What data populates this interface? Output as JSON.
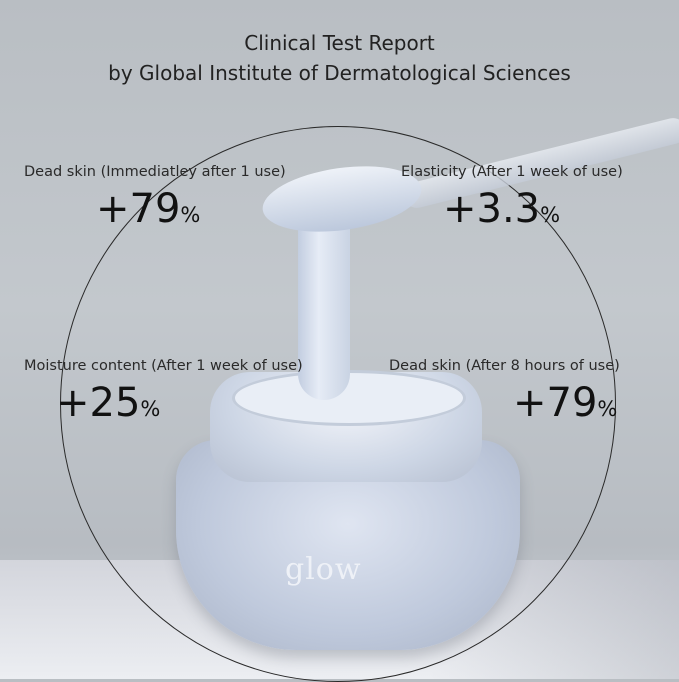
{
  "title": {
    "line1": "Clinical Test Report",
    "line2": "by Global Institute of Dermatological Sciences"
  },
  "stats": [
    {
      "label": "Dead skin (Immediatley after 1 use)",
      "value": "+79",
      "unit": "%"
    },
    {
      "label": "Elasticity (After 1 week of use)",
      "value": "+3.3",
      "unit": "%"
    },
    {
      "label": "Moisture content (After 1 week of use)",
      "value": "+25",
      "unit": "%"
    },
    {
      "label": "Dead skin (After 8 hours of use)",
      "value": "+79",
      "unit": "%"
    }
  ],
  "product": {
    "logo": "glow"
  }
}
